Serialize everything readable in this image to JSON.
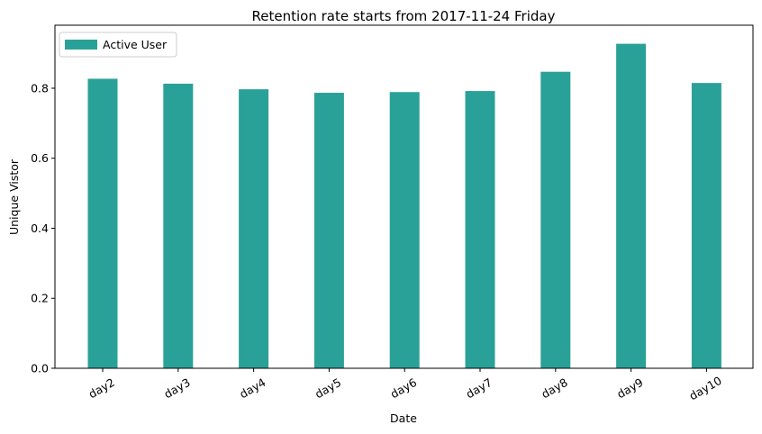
{
  "chart_data": {
    "type": "bar",
    "title": "Retention rate starts from 2017-11-24 Friday",
    "xlabel": "Date",
    "ylabel": "Unique Vistor",
    "categories": [
      "day2",
      "day3",
      "day4",
      "day5",
      "day6",
      "day7",
      "day8",
      "day9",
      "day10"
    ],
    "series": [
      {
        "name": "Active User",
        "color": "#2aa198",
        "values": [
          0.827,
          0.813,
          0.797,
          0.787,
          0.789,
          0.792,
          0.847,
          0.927,
          0.815
        ]
      }
    ],
    "ylim": [
      0,
      0.98
    ],
    "yticks": [
      0.0,
      0.2,
      0.4,
      0.6,
      0.8
    ],
    "ytick_labels": [
      "0.0",
      "0.2",
      "0.4",
      "0.6",
      "0.8"
    ],
    "xtick_rotation": 30,
    "legend": "top-left",
    "grid": false
  }
}
